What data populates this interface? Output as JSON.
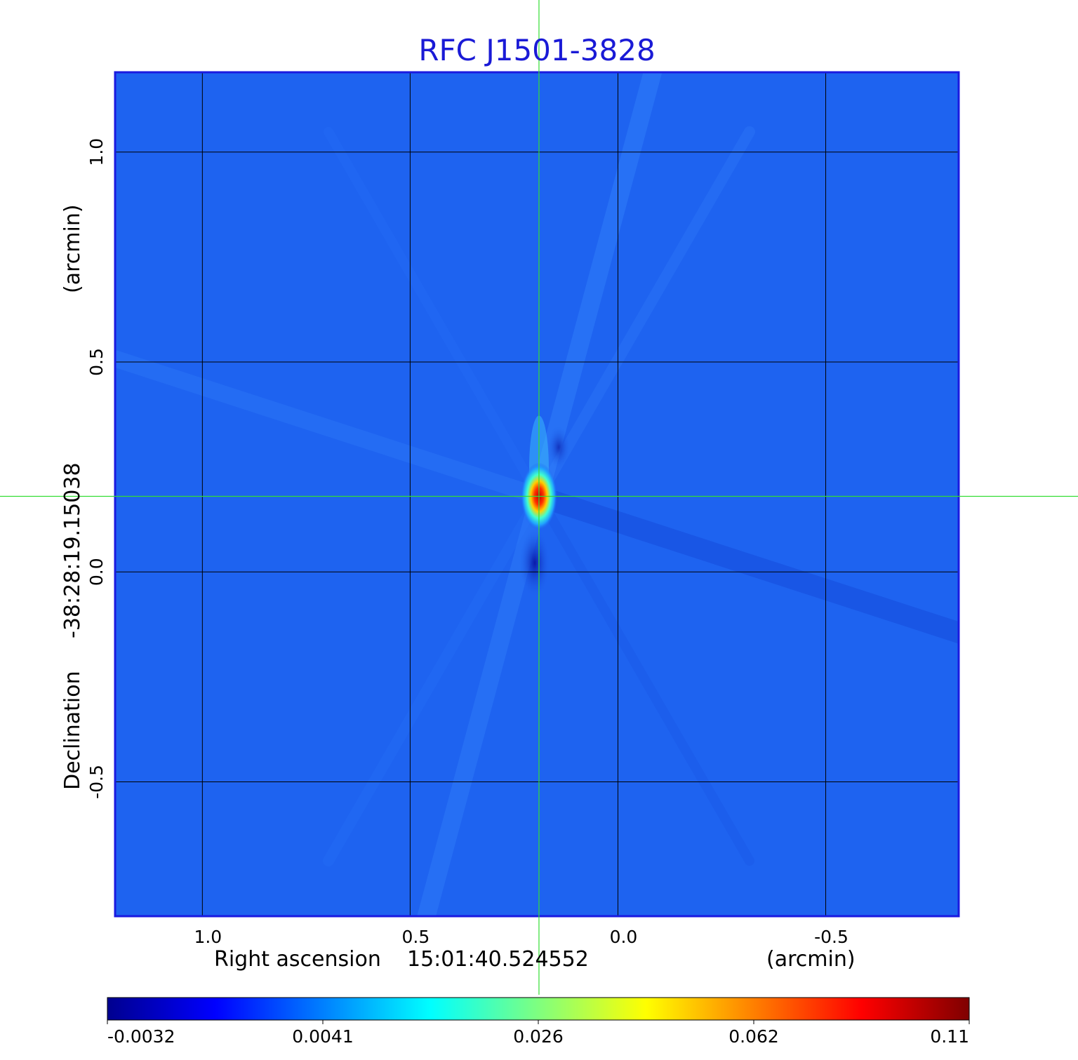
{
  "chart_data": {
    "type": "heatmap",
    "title": "RFC J1501-3828",
    "xlabel": "Right ascension",
    "xcenter": "15:01:40.524552",
    "xunit": "(arcmin)",
    "ylabel": "Declination",
    "ycenter": "-38:28:19.15038",
    "yunit": "(arcmin)",
    "xlim": [
      1.21,
      -0.82
    ],
    "ylim": [
      -0.82,
      1.19
    ],
    "x_ticks": [
      1.0,
      0.5,
      0.0,
      -0.5
    ],
    "x_tick_labels": [
      "1.0",
      "0.5",
      "0.0",
      "-0.5"
    ],
    "y_ticks": [
      1.0,
      0.5,
      0.0,
      -0.5
    ],
    "y_tick_labels": [
      "1.0",
      "0.5",
      "0.0",
      "-0.5"
    ],
    "grid": true,
    "colormap": "jet",
    "colorbar_ticks": [
      "-0.0032",
      "0.0041",
      "0.026",
      "0.062",
      "0.11"
    ],
    "colorbar_range": [
      -0.0032,
      0.11
    ],
    "source_peak": {
      "x": 0.19,
      "y": 0.18,
      "value": 0.11
    },
    "crosshair": {
      "x": 0.19,
      "y": 0.18
    },
    "colors": {
      "title": "#1a1ad6",
      "crosshair": "#33dd33",
      "frame": "#1a1ae0",
      "grid": "#000000",
      "background_field": "#1e63f0"
    }
  }
}
